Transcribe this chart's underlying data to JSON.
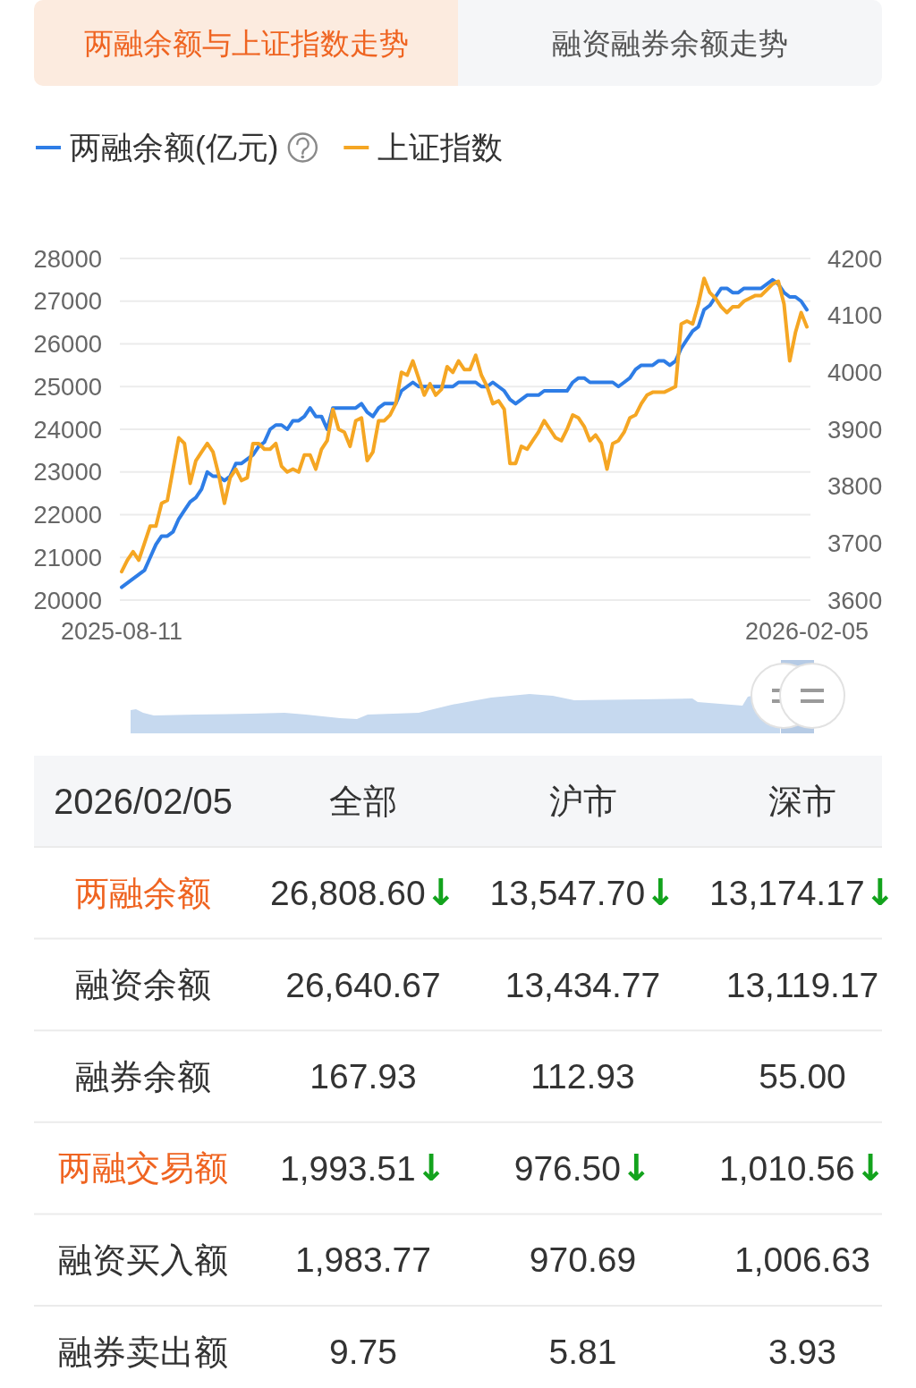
{
  "chart_data": [
    {
      "type": "line",
      "title": "两融余额与上证指数走势",
      "annotations": [
        "融资融券余额走势"
      ],
      "categories": [
        "2025-08-11",
        null,
        null,
        null,
        null,
        null,
        null,
        null,
        null,
        null,
        null,
        null,
        null,
        null,
        null,
        null,
        null,
        null,
        null,
        null,
        null,
        null,
        null,
        null,
        null,
        null,
        null,
        null,
        null,
        null,
        null,
        null,
        null,
        null,
        null,
        null,
        null,
        null,
        null,
        null,
        null,
        null,
        null,
        null,
        null,
        null,
        null,
        null,
        null,
        null,
        null,
        null,
        null,
        null,
        null,
        null,
        null,
        null,
        null,
        null,
        null,
        null,
        null,
        null,
        null,
        null,
        null,
        null,
        null,
        null,
        null,
        null,
        null,
        null,
        null,
        null,
        null,
        null,
        null,
        null,
        null,
        null,
        null,
        null,
        null,
        null,
        null,
        null,
        null,
        null,
        null,
        null,
        null,
        null,
        null,
        null,
        null,
        null,
        null,
        null,
        null,
        null,
        null,
        null,
        null,
        null,
        null,
        null,
        null,
        null,
        null,
        null,
        null,
        null,
        null,
        null,
        null,
        null,
        null,
        null,
        "2026-02-05"
      ],
      "series": [
        {
          "name": "两融余额(亿元)",
          "color": "#2e7de6",
          "values": [
            20300,
            20400,
            20500,
            20600,
            20700,
            21000,
            21300,
            21500,
            21500,
            21600,
            21900,
            22100,
            22300,
            22400,
            22600,
            23000,
            22900,
            22900,
            22800,
            22900,
            23200,
            23200,
            23300,
            23400,
            23600,
            23700,
            24000,
            24100,
            24100,
            24000,
            24200,
            24200,
            24300,
            24500,
            24300,
            24300,
            24000,
            24500,
            24500,
            24500,
            24500,
            24500,
            24600,
            24400,
            24300,
            24500,
            24600,
            24600,
            24600,
            24900,
            25000,
            25100,
            25000,
            25000,
            25000,
            25000,
            25000,
            25000,
            25000,
            25100,
            25100,
            25100,
            25100,
            25000,
            25000,
            25100,
            25000,
            24900,
            24700,
            24600,
            24700,
            24800,
            24800,
            24800,
            24900,
            24900,
            24900,
            24900,
            24900,
            25100,
            25200,
            25200,
            25100,
            25100,
            25100,
            25100,
            25100,
            25000,
            25100,
            25200,
            25400,
            25500,
            25500,
            25500,
            25600,
            25600,
            25500,
            25600,
            25900,
            26100,
            26300,
            26400,
            26800,
            26900,
            27100,
            27300,
            27300,
            27200,
            27200,
            27300,
            27300,
            27300,
            27300,
            27400,
            27500,
            27400,
            27200,
            27100,
            27100,
            27000,
            26800
          ]
        },
        {
          "name": "上证指数",
          "color": "#f5a623",
          "axis": "y2",
          "values": [
            3650,
            3670,
            3685,
            3670,
            3700,
            3730,
            3730,
            3770,
            3775,
            3830,
            3885,
            3875,
            3805,
            3845,
            3860,
            3875,
            3860,
            3820,
            3770,
            3815,
            3830,
            3810,
            3815,
            3875,
            3875,
            3865,
            3865,
            3875,
            3835,
            3825,
            3830,
            3825,
            3855,
            3855,
            3830,
            3865,
            3880,
            3935,
            3900,
            3895,
            3870,
            3915,
            3920,
            3845,
            3860,
            3915,
            3915,
            3925,
            3945,
            4000,
            3995,
            4020,
            3990,
            3960,
            3980,
            3960,
            3970,
            4010,
            4000,
            4020,
            4005,
            4005,
            4030,
            3995,
            3975,
            3945,
            3950,
            3935,
            3840,
            3840,
            3870,
            3865,
            3880,
            3895,
            3915,
            3900,
            3885,
            3880,
            3900,
            3925,
            3920,
            3905,
            3880,
            3890,
            3875,
            3830,
            3875,
            3880,
            3895,
            3920,
            3925,
            3945,
            3960,
            3965,
            3965,
            3965,
            3970,
            3975,
            4085,
            4090,
            4085,
            4120,
            4165,
            4140,
            4130,
            4115,
            4105,
            4115,
            4115,
            4125,
            4130,
            4135,
            4135,
            4145,
            4155,
            4160,
            4120,
            4020,
            4070,
            4105,
            4080
          ]
        }
      ],
      "ylim": [
        20000,
        28000
      ],
      "yticks": [
        20000,
        21000,
        22000,
        23000,
        24000,
        25000,
        26000,
        27000,
        28000
      ],
      "y2lim": [
        3600,
        4200
      ],
      "y2ticks": [
        3600,
        3700,
        3800,
        3900,
        4000,
        4100,
        4200
      ],
      "grid": "y",
      "legend": "top left"
    },
    {
      "type": "other",
      "title": "2026/02/05",
      "categories": [
        "全部",
        "沪市",
        "深市"
      ],
      "y_categories": [
        "两融余额",
        "融资余额",
        "融券余额",
        "两融交易额",
        "融资买入额",
        "融券卖出额"
      ],
      "cell_labels": [
        [
          "26,808.60↓",
          "13,547.70↓",
          "13,174.17↓"
        ],
        [
          "26,640.67",
          "13,434.77",
          "13,119.17"
        ],
        [
          "167.93",
          "112.93",
          "55.00"
        ],
        [
          "1,993.51↓",
          "976.50↓",
          "1,010.56↓"
        ],
        [
          "1,983.77",
          "970.69",
          "1,006.63"
        ],
        [
          "9.75",
          "5.81",
          "3.93"
        ]
      ]
    }
  ]
}
